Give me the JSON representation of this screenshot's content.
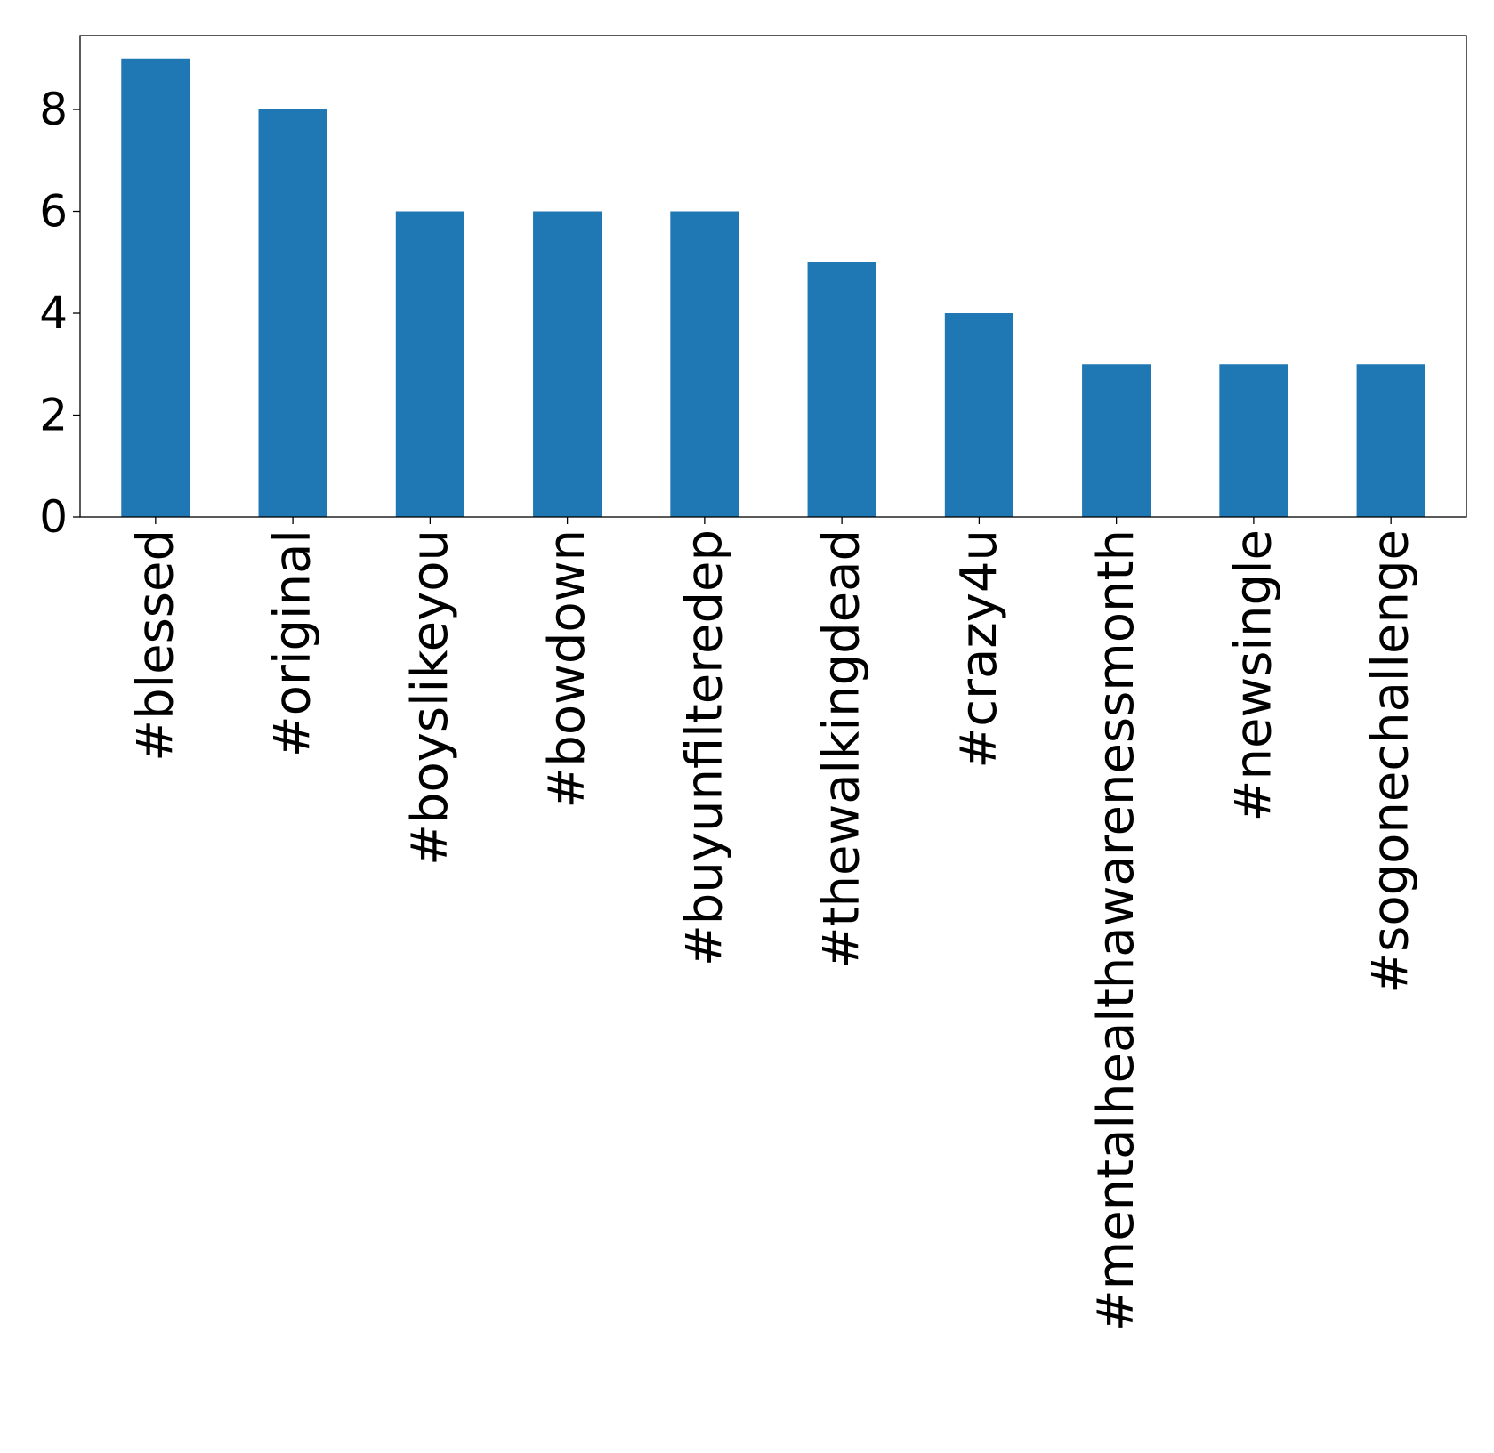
{
  "chart_data": {
    "type": "bar",
    "title": "",
    "xlabel": "",
    "ylabel": "",
    "categories": [
      "#blessed",
      "#original",
      "#boyslikeyou",
      "#bowdown",
      "#buyunfilteredep",
      "#thewalkingdead",
      "#crazy4u",
      "#mentalhealthawarenessmonth",
      "#newsingle",
      "#sogonechallenge"
    ],
    "values": [
      9,
      8,
      6,
      6,
      6,
      5,
      4,
      3,
      3,
      3
    ],
    "ylim": [
      0,
      9.45
    ],
    "yticks": [
      0,
      2,
      4,
      6,
      8
    ],
    "bar_color": "#1f77b4",
    "grid": false,
    "legend": "none"
  }
}
